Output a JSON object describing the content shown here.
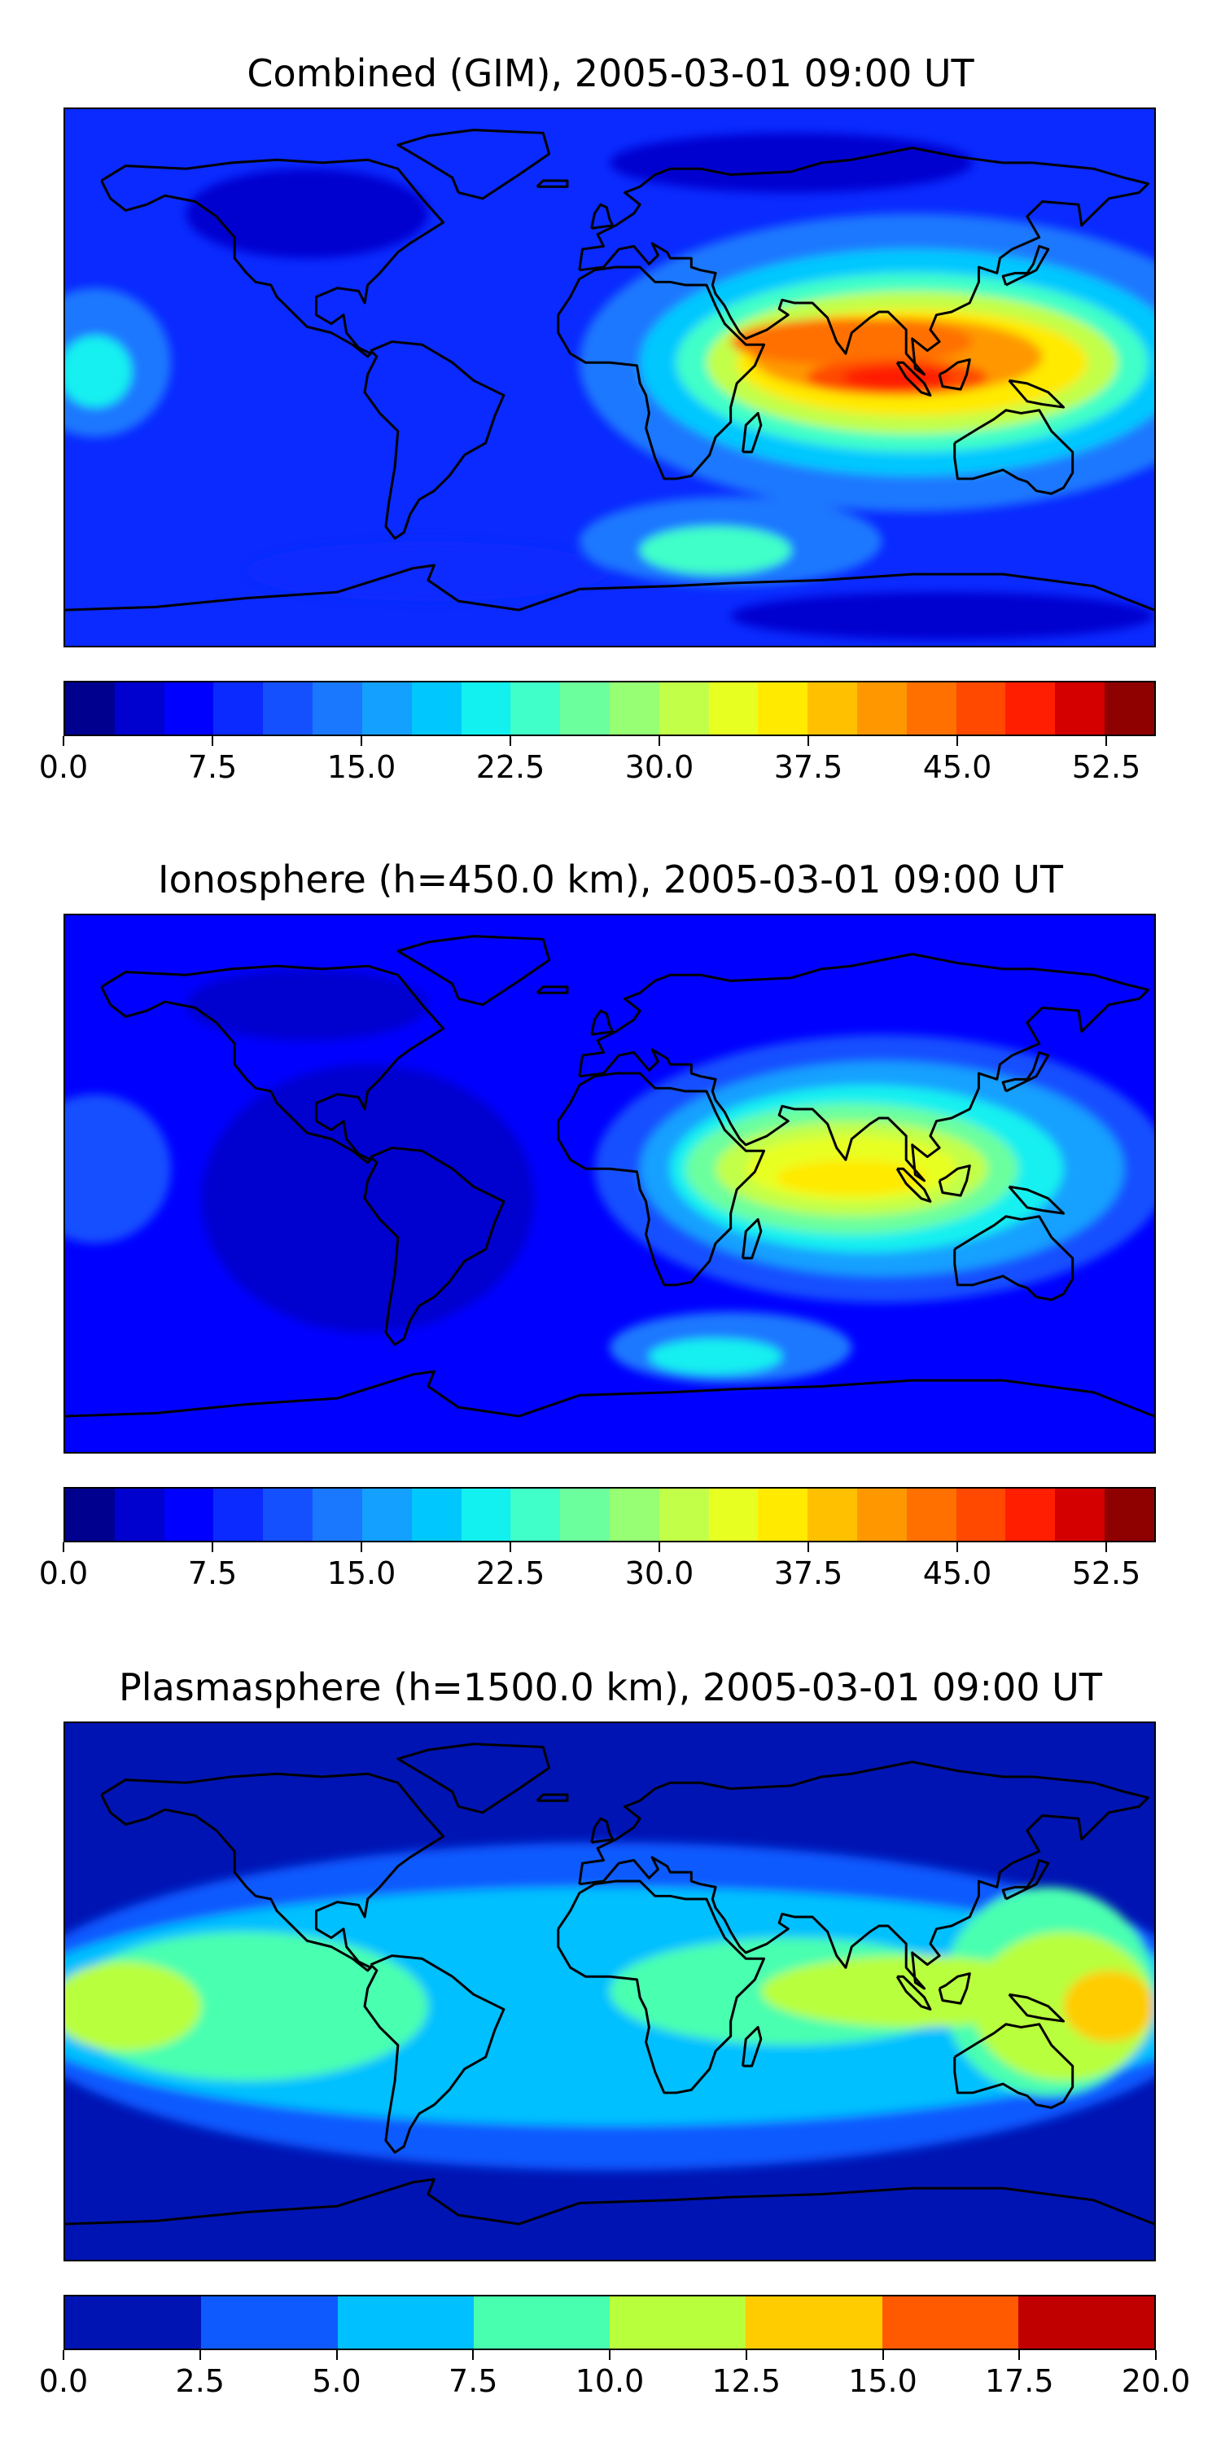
{
  "panels": [
    {
      "id": "combined",
      "title": "Combined (GIM), 2005-03-01 09:00 UT",
      "colorbar": {
        "min": 0.0,
        "max": 55.0,
        "step": 2.5,
        "tick_labels": [
          "0.0",
          "7.5",
          "15.0",
          "22.5",
          "30.0",
          "37.5",
          "45.0",
          "52.5"
        ],
        "tick_values": [
          0.0,
          7.5,
          15.0,
          22.5,
          30.0,
          37.5,
          45.0,
          52.5
        ],
        "colors": [
          "#00008f",
          "#0000cf",
          "#0000ff",
          "#0a2aff",
          "#1550ff",
          "#1a78ff",
          "#13a0ff",
          "#00c8ff",
          "#12f0f0",
          "#40ffc8",
          "#6cff9e",
          "#96ff74",
          "#c2ff48",
          "#e8ff22",
          "#ffea00",
          "#ffc000",
          "#ff9800",
          "#ff7000",
          "#ff4800",
          "#ff1e00",
          "#d40000",
          "#8f0000"
        ]
      },
      "map": {
        "background_color": "#0a2aff",
        "blobs": [
          {
            "lon": -100,
            "lat": 55,
            "rx": 40,
            "ry": 15,
            "level": 1
          },
          {
            "lon": 60,
            "lat": 72,
            "rx": 60,
            "ry": 10,
            "level": 1
          },
          {
            "lon": 110,
            "lat": -80,
            "rx": 70,
            "ry": 8,
            "level": 1
          },
          {
            "lon": -60,
            "lat": -65,
            "rx": 60,
            "ry": 10,
            "level": 3
          },
          {
            "lon": -170,
            "lat": 5,
            "rx": 25,
            "ry": 25,
            "level": 5
          },
          {
            "lon": -170,
            "lat": 2,
            "rx": 12,
            "ry": 12,
            "level": 8
          },
          {
            "lon": 100,
            "lat": 5,
            "rx": 110,
            "ry": 50,
            "level": 5
          },
          {
            "lon": 40,
            "lat": -55,
            "rx": 50,
            "ry": 15,
            "level": 5
          },
          {
            "lon": 35,
            "lat": -58,
            "rx": 25,
            "ry": 8,
            "level": 9
          },
          {
            "lon": 100,
            "lat": 5,
            "rx": 90,
            "ry": 38,
            "level": 7
          },
          {
            "lon": 100,
            "lat": 5,
            "rx": 78,
            "ry": 30,
            "level": 9
          },
          {
            "lon": 100,
            "lat": 5,
            "rx": 68,
            "ry": 24,
            "level": 12
          },
          {
            "lon": 100,
            "lat": 5,
            "rx": 58,
            "ry": 18,
            "level": 14
          },
          {
            "lon": 95,
            "lat": 7,
            "rx": 48,
            "ry": 13,
            "level": 16
          },
          {
            "lon": 80,
            "lat": 12,
            "rx": 40,
            "ry": 8,
            "level": 17
          },
          {
            "lon": 95,
            "lat": 0,
            "rx": 30,
            "ry": 6,
            "level": 18
          },
          {
            "lon": 95,
            "lat": 0,
            "rx": 18,
            "ry": 4,
            "level": 19
          }
        ]
      }
    },
    {
      "id": "ionosphere",
      "title": "Ionosphere  (h=450.0 km), 2005-03-01 09:00 UT",
      "colorbar": {
        "min": 0.0,
        "max": 55.0,
        "step": 2.5,
        "tick_labels": [
          "0.0",
          "7.5",
          "15.0",
          "22.5",
          "30.0",
          "37.5",
          "45.0",
          "52.5"
        ],
        "tick_values": [
          0.0,
          7.5,
          15.0,
          22.5,
          30.0,
          37.5,
          45.0,
          52.5
        ],
        "colors": [
          "#00008f",
          "#0000cf",
          "#0000ff",
          "#0a2aff",
          "#1550ff",
          "#1a78ff",
          "#13a0ff",
          "#00c8ff",
          "#12f0f0",
          "#40ffc8",
          "#6cff9e",
          "#96ff74",
          "#c2ff48",
          "#e8ff22",
          "#ffea00",
          "#ffc000",
          "#ff9800",
          "#ff7000",
          "#ff4800",
          "#ff1e00",
          "#d40000",
          "#8f0000"
        ]
      },
      "map": {
        "background_color": "#0000ff",
        "blobs": [
          {
            "lon": -80,
            "lat": -5,
            "rx": 55,
            "ry": 45,
            "level": 1
          },
          {
            "lon": -100,
            "lat": 60,
            "rx": 40,
            "ry": 12,
            "level": 1
          },
          {
            "lon": -170,
            "lat": 5,
            "rx": 25,
            "ry": 25,
            "level": 4
          },
          {
            "lon": 40,
            "lat": -55,
            "rx": 40,
            "ry": 12,
            "level": 5
          },
          {
            "lon": 35,
            "lat": -58,
            "rx": 22,
            "ry": 6,
            "level": 8
          },
          {
            "lon": 90,
            "lat": 5,
            "rx": 95,
            "ry": 45,
            "level": 4
          },
          {
            "lon": 90,
            "lat": 5,
            "rx": 80,
            "ry": 36,
            "level": 6
          },
          {
            "lon": 85,
            "lat": 5,
            "rx": 65,
            "ry": 28,
            "level": 8
          },
          {
            "lon": 80,
            "lat": 5,
            "rx": 55,
            "ry": 22,
            "level": 10
          },
          {
            "lon": 80,
            "lat": 5,
            "rx": 45,
            "ry": 16,
            "level": 12
          },
          {
            "lon": 80,
            "lat": 5,
            "rx": 35,
            "ry": 11,
            "level": 13
          },
          {
            "lon": 80,
            "lat": 2,
            "rx": 25,
            "ry": 6,
            "level": 14
          }
        ]
      }
    },
    {
      "id": "plasmasphere",
      "title": "Plasmasphere (h=1500.0 km), 2005-03-01 09:00 UT",
      "colorbar": {
        "min": 0.0,
        "max": 20.0,
        "step": 2.5,
        "tick_labels": [
          "0.0",
          "2.5",
          "5.0",
          "7.5",
          "10.0",
          "12.5",
          "15.0",
          "17.5",
          "20.0"
        ],
        "tick_values": [
          0.0,
          2.5,
          5.0,
          7.5,
          10.0,
          12.5,
          15.0,
          17.5,
          20.0
        ],
        "colors": [
          "#0014b4",
          "#0e5aff",
          "#00c0ff",
          "#48ffb0",
          "#b8ff3c",
          "#ffcc00",
          "#ff5a00",
          "#c00000"
        ]
      },
      "map": {
        "background_color": "#0014b4",
        "blobs": [
          {
            "lon": 0,
            "lat": -5,
            "rx": 200,
            "ry": 55,
            "level": 1
          },
          {
            "lon": 0,
            "lat": -5,
            "rx": 200,
            "ry": 40,
            "level": 2
          },
          {
            "lon": -120,
            "lat": -5,
            "rx": 60,
            "ry": 25,
            "level": 3
          },
          {
            "lon": -160,
            "lat": -5,
            "rx": 25,
            "ry": 15,
            "level": 4
          },
          {
            "lon": 60,
            "lat": 0,
            "rx": 60,
            "ry": 18,
            "level": 3
          },
          {
            "lon": 145,
            "lat": 0,
            "rx": 35,
            "ry": 35,
            "level": 3
          },
          {
            "lon": 100,
            "lat": 0,
            "rx": 50,
            "ry": 12,
            "level": 4
          },
          {
            "lon": 150,
            "lat": -5,
            "rx": 30,
            "ry": 25,
            "level": 4
          },
          {
            "lon": 165,
            "lat": -5,
            "rx": 15,
            "ry": 12,
            "level": 5
          }
        ]
      }
    }
  ]
}
